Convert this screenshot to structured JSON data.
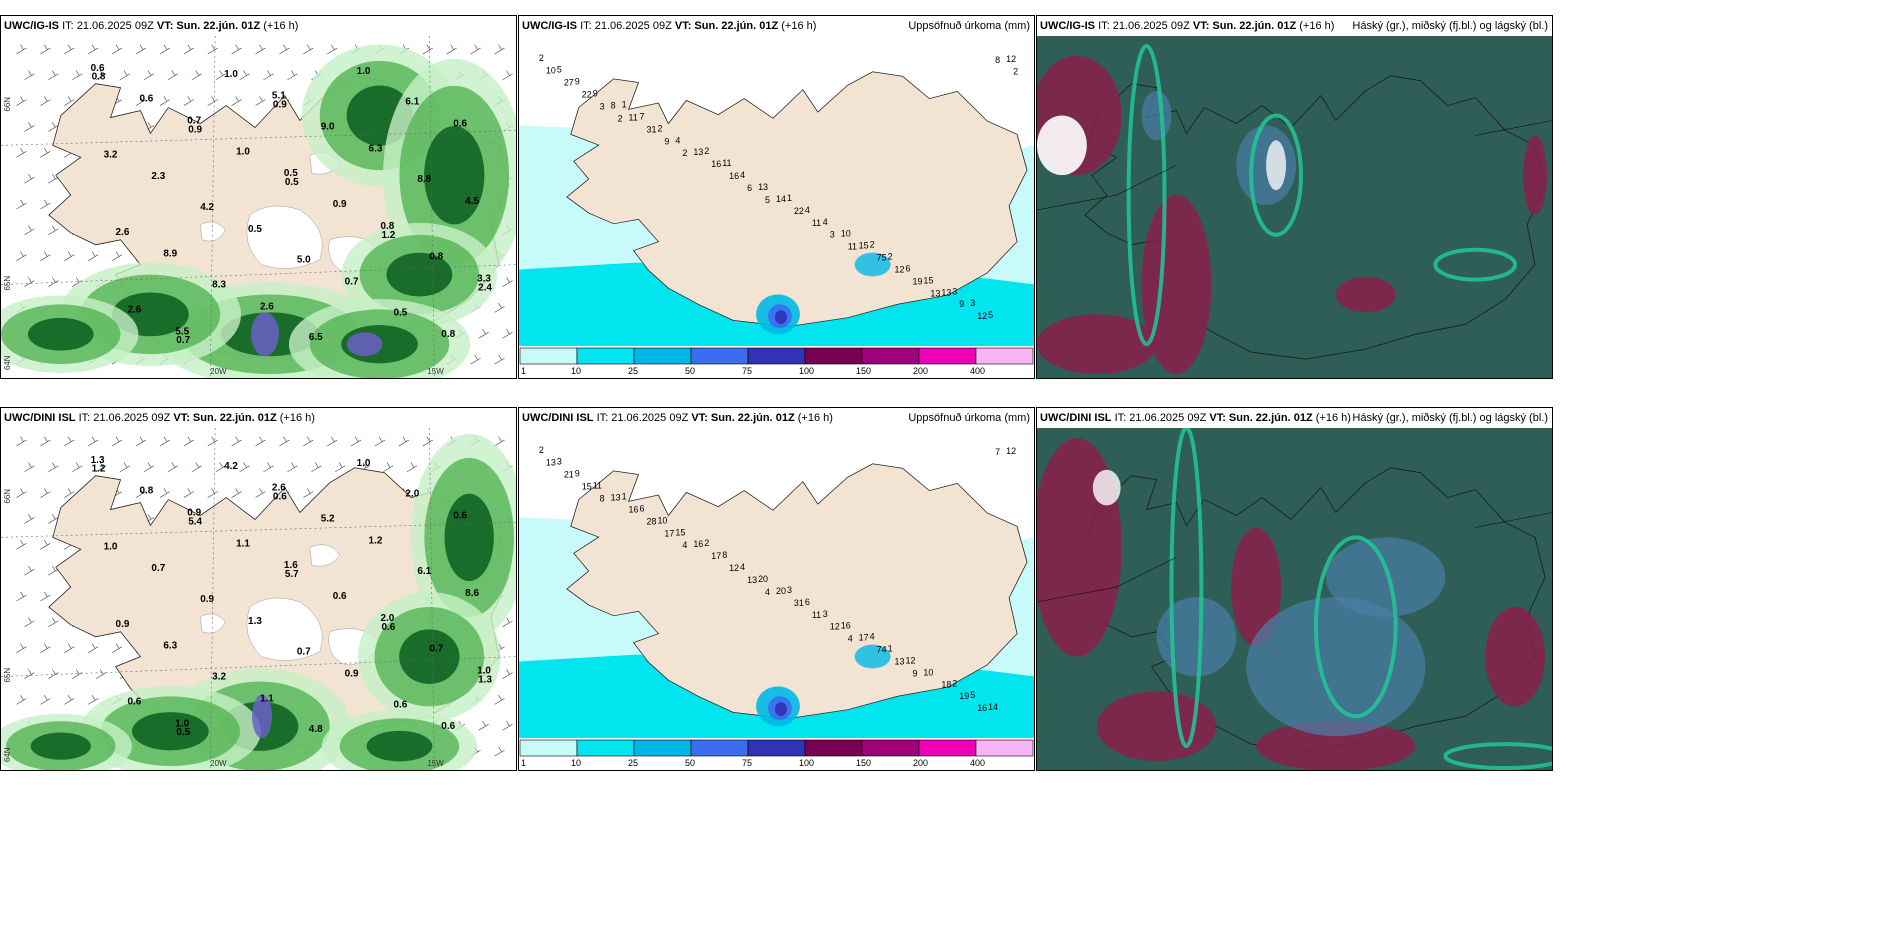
{
  "panels": [
    {
      "id": "p1",
      "model": "UWC/IG-IS",
      "init": "IT: 21.06.2025 09Z",
      "vt_label": "VT:",
      "vt": "Sun. 22.jún. 01Z",
      "lead": "(+16 h)",
      "field": "",
      "axis_labels": [
        "66N",
        "65N",
        "64N",
        "20W",
        "15W"
      ],
      "values": [
        "0.6",
        "0.7",
        "0.5",
        "0.8",
        "3.3",
        "5.5",
        "5.1",
        "6.3",
        "4.5",
        "8.9",
        "2.6",
        "1.0",
        "0.6",
        "2.3",
        "0.5",
        "0.7",
        "0.8",
        "0.6",
        "1.0",
        "0.9",
        "0.8",
        "2.6",
        "1.0",
        "9.0",
        "8.8",
        "2.6",
        "8.3",
        "6.5",
        "6.1",
        "3.2",
        "4.2",
        "5.0",
        "0.5",
        "0.8",
        "0.9",
        "0.5",
        "1.2",
        "2.4",
        "0.7",
        "0.9"
      ]
    },
    {
      "id": "p2",
      "model": "UWC/IG-IS",
      "init": "IT: 21.06.2025 09Z",
      "vt_label": "VT:",
      "vt": "Sun. 22.jún. 01Z",
      "lead": "(+16 h)",
      "field": "Uppsöfnuð úrkoma (mm)",
      "values": [
        "2",
        "1",
        "2",
        "1",
        "2",
        "3",
        "5",
        "7",
        "11",
        "4",
        "2",
        "3",
        "9",
        "2",
        "4",
        "4",
        "6",
        "5",
        "9",
        "4",
        "13",
        "10",
        "15",
        "12",
        "8",
        "13",
        "14",
        "15",
        "13",
        "10",
        "11",
        "16",
        "22",
        "75",
        "9",
        "27",
        "31",
        "16",
        "11",
        "12",
        "12",
        "22",
        "9",
        "6",
        "3",
        "19",
        "8",
        "3",
        "2",
        "5",
        "11",
        "13",
        "2",
        "2"
      ],
      "legend": [
        "1",
        "10",
        "25",
        "50",
        "75",
        "100",
        "150",
        "200",
        "400"
      ]
    },
    {
      "id": "p3",
      "model": "UWC/IG-IS",
      "init": "IT: 21.06.2025 09Z",
      "vt_label": "VT:",
      "vt": "Sun. 22.jún. 01Z",
      "lead": "(+16 h)",
      "field": "Háský (gr.), miðský (fj.bl.) og lágský (bl.)"
    },
    {
      "id": "p4",
      "model": "UWC/DINI ISL",
      "init": "IT: 21.06.2025 09Z",
      "vt_label": "VT:",
      "vt": "Sun. 22.jún. 01Z",
      "lead": "(+16 h)",
      "field": "",
      "axis_labels": [
        "66N",
        "65N",
        "64N",
        "20W",
        "15W"
      ],
      "values": [
        "1.3",
        "0.9",
        "1.6",
        "2.0",
        "1.0",
        "1.0",
        "2.6",
        "1.2",
        "8.6",
        "6.3",
        "1.1",
        "1.0",
        "0.6",
        "0.7",
        "1.3",
        "0.9",
        "0.6",
        "0.8",
        "1.1",
        "0.6",
        "0.7",
        "0.6",
        "4.2",
        "5.2",
        "6.1",
        "0.9",
        "3.2",
        "4.8",
        "2.0",
        "1.0",
        "0.9",
        "0.7",
        "0.6",
        "1.2",
        "5.4",
        "5.7",
        "0.6",
        "1.3",
        "0.5",
        "0.6"
      ]
    },
    {
      "id": "p5",
      "model": "UWC/DINI ISL",
      "init": "IT: 21.06.2025 09Z",
      "vt_label": "VT:",
      "vt": "Sun. 22.jún. 01Z",
      "lead": "(+16 h)",
      "field": "Uppsöfnuð úrkoma (mm)",
      "values": [
        "2",
        "1",
        "2",
        "3",
        "4",
        "2",
        "3",
        "6",
        "8",
        "6",
        "1",
        "5",
        "9",
        "10",
        "4",
        "3",
        "12",
        "14",
        "11",
        "15",
        "20",
        "16",
        "10",
        "12",
        "13",
        "16",
        "20",
        "17",
        "18",
        "13",
        "16",
        "17",
        "31",
        "74",
        "19",
        "21",
        "28",
        "12",
        "11",
        "13",
        "16",
        "15",
        "17",
        "13",
        "12",
        "9",
        "7",
        "8",
        "4",
        "4",
        "4"
      ],
      "legend": [
        "1",
        "10",
        "25",
        "50",
        "75",
        "100",
        "150",
        "200",
        "400"
      ]
    },
    {
      "id": "p6",
      "model": "UWC/DINI ISL",
      "init": "IT: 21.06.2025 09Z",
      "vt_label": "VT:",
      "vt": "Sun. 22.jún. 01Z",
      "lead": "(+16 h)",
      "field": "Háský (gr.), miðský (fj.bl.) og lágský (bl.)"
    }
  ],
  "colors": {
    "land": "#f3e3d2",
    "precip_light": "#c6f0c6",
    "precip_mid": "#54b454",
    "precip_dark": "#0b5d1e",
    "precip_max": "#6b5fc8",
    "acc_1": "#c8fafa",
    "acc_10": "#00e5ee",
    "acc_25": "#00b8e6",
    "acc_50": "#3c6cf0",
    "acc_75": "#3232b4",
    "acc_100": "#780050",
    "acc_150": "#a0007a",
    "acc_200": "#f000b4",
    "acc_400": "#f5b4f5",
    "cloud_bg": "#2e5e55",
    "cloud_high": "#20c896",
    "cloud_mid": "#8a1e4a",
    "cloud_low": "#4a7fa8"
  }
}
